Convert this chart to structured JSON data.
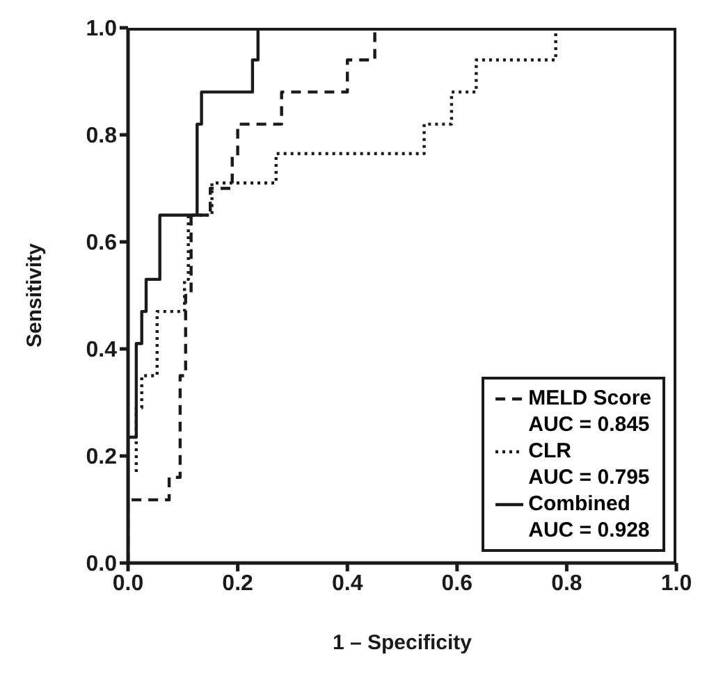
{
  "chart_data": {
    "type": "line",
    "xlabel": "1 – Specificity",
    "ylabel": "Sensitivity",
    "xlim": [
      0,
      1
    ],
    "ylim": [
      0,
      1
    ],
    "xticks": [
      {
        "value": 0,
        "label": "0.0"
      },
      {
        "value": 0.2,
        "label": "0.2"
      },
      {
        "value": 0.4,
        "label": "0.4"
      },
      {
        "value": 0.6,
        "label": "0.6"
      },
      {
        "value": 0.8,
        "label": "0.8"
      },
      {
        "value": 1,
        "label": "1.0"
      }
    ],
    "yticks": [
      {
        "value": 0,
        "label": "0.0"
      },
      {
        "value": 0.2,
        "label": "0.2"
      },
      {
        "value": 0.4,
        "label": "0.4"
      },
      {
        "value": 0.6,
        "label": "0.6"
      },
      {
        "value": 0.8,
        "label": "0.8"
      },
      {
        "value": 1,
        "label": "1.0"
      }
    ],
    "grid": false,
    "legend": "bottom right",
    "marker": "none",
    "annotations": [
      "AUC = 0.845",
      "AUC = 0.795",
      "AUC = 0.928"
    ],
    "series": [
      {
        "name": "MELD Score",
        "color": "#1a1a1a",
        "line_style": "dashed",
        "x": [
          0,
          0,
          0.075,
          0.075,
          0.095,
          0.095,
          0.105,
          0.105,
          0.115,
          0.115,
          0.15,
          0.15,
          0.19,
          0.19,
          0.2,
          0.2,
          0.28,
          0.28,
          0.4,
          0.4,
          0.45,
          0.45,
          1
        ],
        "values": [
          0,
          0.118,
          0.118,
          0.16,
          0.16,
          0.35,
          0.35,
          0.5,
          0.5,
          0.65,
          0.65,
          0.7,
          0.7,
          0.76,
          0.76,
          0.82,
          0.82,
          0.88,
          0.88,
          0.94,
          0.94,
          1,
          1
        ]
      },
      {
        "name": "CLR",
        "color": "#1a1a1a",
        "line_style": "dotted",
        "x": [
          0.015,
          0.015,
          0.025,
          0.025,
          0.053,
          0.053,
          0.103,
          0.103,
          0.11,
          0.11,
          0.153,
          0.153,
          0.27,
          0.27,
          0.54,
          0.54,
          0.59,
          0.59,
          0.635,
          0.635,
          0.78,
          0.78,
          1
        ],
        "values": [
          0.17,
          0.29,
          0.29,
          0.35,
          0.35,
          0.47,
          0.47,
          0.53,
          0.53,
          0.65,
          0.65,
          0.71,
          0.71,
          0.765,
          0.765,
          0.82,
          0.82,
          0.88,
          0.88,
          0.94,
          0.94,
          1,
          1
        ]
      },
      {
        "name": "Combined",
        "color": "#1a1a1a",
        "line_style": "solid",
        "x": [
          0,
          0,
          0.015,
          0.015,
          0.025,
          0.025,
          0.033,
          0.033,
          0.058,
          0.058,
          0.126,
          0.126,
          0.134,
          0.134,
          0.227,
          0.227,
          0.237,
          0.237,
          1
        ],
        "values": [
          0,
          0.235,
          0.235,
          0.41,
          0.41,
          0.47,
          0.47,
          0.53,
          0.53,
          0.65,
          0.65,
          0.82,
          0.82,
          0.88,
          0.88,
          0.94,
          0.94,
          1,
          1
        ]
      }
    ]
  }
}
